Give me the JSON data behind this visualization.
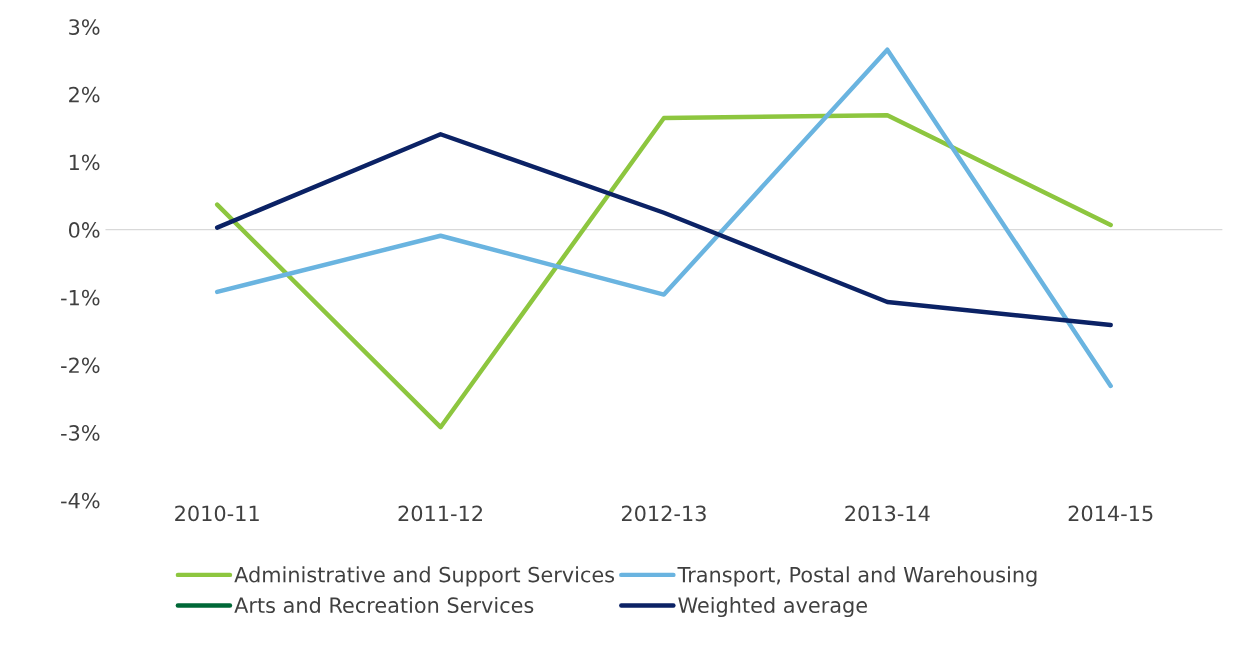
{
  "chart_data": {
    "type": "line",
    "categories": [
      "2010-11",
      "2011-12",
      "2012-13",
      "2013-14",
      "2014-15"
    ],
    "series": [
      {
        "name": "Administrative and Support Services",
        "color": "#8dc63f",
        "values": [
          0.37,
          -2.92,
          1.65,
          1.69,
          0.07
        ]
      },
      {
        "name": "Arts and Recreation Services",
        "color": "#006837",
        "values": [
          null,
          null,
          null,
          null,
          null
        ]
      },
      {
        "name": "Transport, Postal and Warehousing",
        "color": "#6ab4e0",
        "values": [
          -0.92,
          -0.09,
          -0.96,
          2.66,
          -2.31
        ]
      },
      {
        "name": "Weighted average",
        "color": "#0b2265",
        "values": [
          0.03,
          1.41,
          0.25,
          -1.07,
          -1.41
        ]
      }
    ],
    "ylim": [
      -4,
      3
    ],
    "yticks": [
      {
        "value": -4,
        "label": "-4%"
      },
      {
        "value": -3,
        "label": "-3%"
      },
      {
        "value": -2,
        "label": "-2%"
      },
      {
        "value": -1,
        "label": "-1%"
      },
      {
        "value": 0,
        "label": "0%"
      },
      {
        "value": 1,
        "label": "1%"
      },
      {
        "value": 2,
        "label": "2%"
      },
      {
        "value": 3,
        "label": "3%"
      }
    ],
    "ref_lines": [
      {
        "axis": "y",
        "value": 0,
        "color": "#d9d9d9"
      }
    ],
    "grid": false,
    "legend": "bottom",
    "marker": "none",
    "line_style": "solid"
  }
}
